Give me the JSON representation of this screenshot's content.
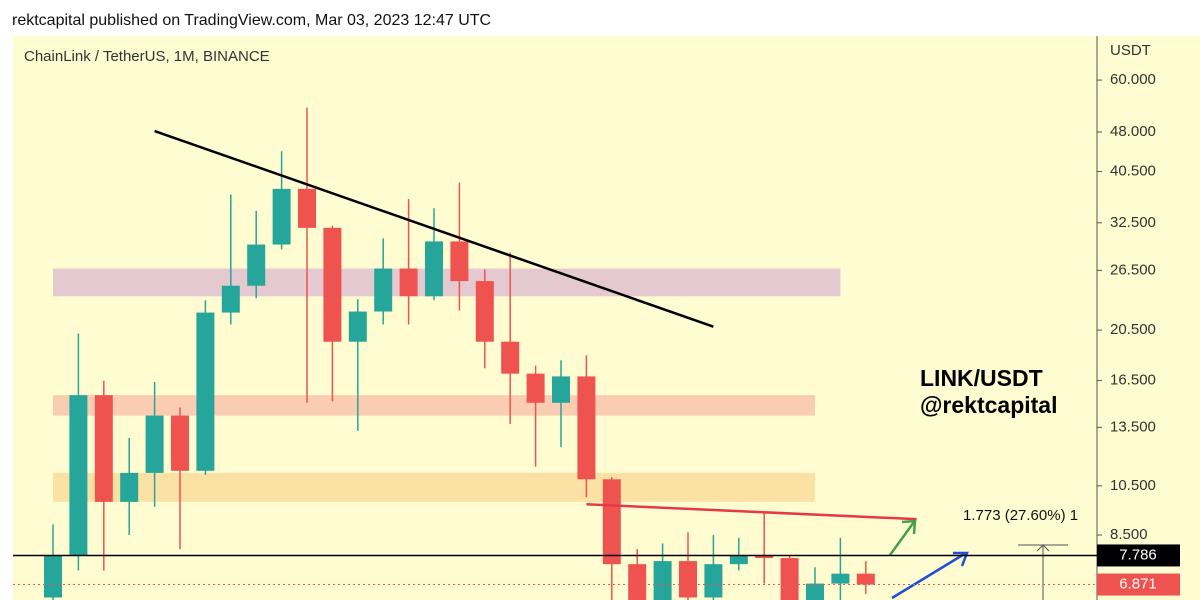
{
  "header": {
    "title": "rektcapital published on TradingView.com, Mar 03, 2023 12:47 UTC"
  },
  "chart_data": {
    "type": "candlestick",
    "title": "ChainLink / TetherUS, 1M, BINANCE",
    "y_label": "USDT",
    "log_scale": true,
    "up_color": "#26a69a",
    "down_color": "#ef5350",
    "open": [
      6.5,
      7.8,
      15.5,
      9.8,
      11.1,
      14.2,
      11.2,
      22.1,
      24.8,
      29.6,
      37.6,
      31.8,
      19.5,
      22.2,
      26.7,
      23.7,
      30.0,
      25.3,
      19.5,
      17.0,
      15.0,
      16.8,
      10.8,
      7.5,
      6.3,
      7.6,
      6.5,
      7.5,
      7.8,
      7.7,
      6.3,
      6.9,
      7.2
    ],
    "high": [
      8.9,
      20.2,
      16.5,
      12.9,
      16.4,
      14.7,
      23.3,
      36.7,
      34.2,
      44.2,
      53.3,
      32.1,
      23.4,
      30.4,
      36.0,
      34.6,
      38.6,
      26.6,
      28.6,
      17.6,
      18.0,
      18.4,
      10.9,
      8.0,
      8.2,
      8.6,
      8.5,
      8.4,
      9.4,
      7.8,
      7.4,
      8.4,
      7.6
    ],
    "low": [
      6.4,
      7.3,
      7.3,
      8.5,
      9.6,
      8.0,
      11.0,
      21.0,
      23.5,
      29.0,
      15.0,
      15.1,
      13.3,
      21.0,
      21.0,
      23.3,
      22.3,
      17.4,
      13.7,
      11.4,
      12.4,
      10.0,
      6.4,
      6.0,
      6.0,
      6.2,
      6.4,
      7.3,
      6.9,
      6.0,
      6.0,
      6.0,
      6.6
    ],
    "close": [
      7.8,
      15.5,
      9.8,
      11.1,
      14.2,
      11.2,
      22.1,
      24.8,
      29.6,
      37.6,
      31.8,
      19.5,
      22.2,
      26.7,
      23.7,
      30.0,
      25.3,
      19.5,
      17.0,
      15.0,
      16.8,
      10.8,
      7.5,
      6.3,
      7.6,
      6.5,
      7.5,
      7.8,
      7.7,
      6.3,
      6.9,
      7.2,
      6.871
    ],
    "ylim": [
      6.43,
      72.5
    ],
    "yticks": [
      {
        "value": 60,
        "label": "60.000"
      },
      {
        "value": 48,
        "label": "48.000"
      },
      {
        "value": 40.5,
        "label": "40.500"
      },
      {
        "value": 32.5,
        "label": "32.500"
      },
      {
        "value": 26.5,
        "label": "26.500"
      },
      {
        "value": 20.5,
        "label": "20.500"
      },
      {
        "value": 16.5,
        "label": "16.500"
      },
      {
        "value": 13.5,
        "label": "13.500"
      },
      {
        "value": 10.5,
        "label": "10.500"
      },
      {
        "value": 8.5,
        "label": "8.500"
      }
    ],
    "zones": [
      {
        "x": [
          0,
          31
        ],
        "y": [
          23.7,
          26.7
        ],
        "color": "#e0bfd0"
      },
      {
        "x": [
          0,
          30
        ],
        "y": [
          14.2,
          15.5
        ],
        "color": "#f9c4ad"
      },
      {
        "x": [
          0,
          30
        ],
        "y": [
          9.8,
          11.1
        ],
        "color": "#fbdc9c"
      }
    ],
    "trendlines": [
      {
        "x": [
          4,
          26
        ],
        "y": [
          48.2,
          20.8
        ],
        "color": "#000000"
      },
      {
        "x": [
          21,
          34
        ],
        "y": [
          9.7,
          9.1
        ],
        "color": "#e53945"
      }
    ],
    "price_line": {
      "value": 7.786,
      "label": "7.786"
    },
    "last_price": {
      "value": 6.871,
      "label": "6.871"
    },
    "annotations": [
      "LINK/USDT",
      "@rektcapital",
      "1.773 (27.60%) 1"
    ]
  }
}
